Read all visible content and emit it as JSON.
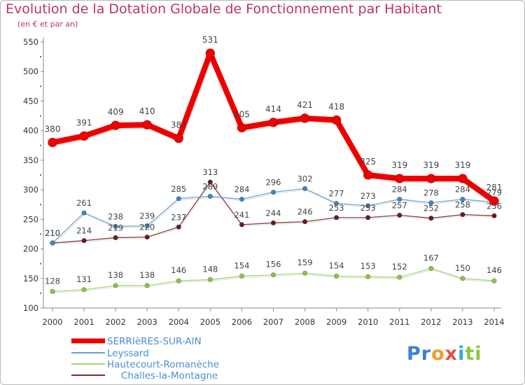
{
  "chart_data": {
    "type": "line",
    "title": "Evolution de la Dotation Globale de Fonctionnement par Habitant",
    "subtitle": "(en € et par an)",
    "xlabel": "",
    "ylabel": "",
    "x": [
      "2000",
      "2001",
      "2002",
      "2003",
      "2004",
      "2005",
      "2006",
      "2007",
      "2008",
      "2009",
      "2010",
      "2011",
      "2012",
      "2013",
      "2014"
    ],
    "ylim": [
      100,
      550
    ],
    "yticks": [
      100,
      150,
      200,
      250,
      300,
      350,
      400,
      450,
      500,
      550
    ],
    "grid": false,
    "legend_position": "bottom-left",
    "series": [
      {
        "name": "SERRIèRES-SUR-AIN",
        "color": "#ee0000",
        "marker": "#ee0000",
        "values": [
          380,
          391,
          409,
          410,
          387,
          531,
          405,
          414,
          421,
          418,
          325,
          319,
          319,
          319,
          281
        ]
      },
      {
        "name": "Leyssard",
        "color": "#6aa0d0",
        "marker": "#3d86c6",
        "values": [
          210,
          261,
          238,
          239,
          285,
          289,
          284,
          296,
          302,
          277,
          273,
          284,
          278,
          284,
          279
        ]
      },
      {
        "name": "Hautecourt-Romanèche",
        "color": "#a4d36c",
        "marker": "#8cc63f",
        "values": [
          128,
          131,
          138,
          138,
          146,
          148,
          154,
          156,
          159,
          154,
          153,
          152,
          167,
          150,
          146
        ]
      },
      {
        "name": "Challes-la-Montagne",
        "color": "#7a2d2d",
        "marker": "#6b1c1c",
        "values": [
          210,
          214,
          219,
          220,
          237,
          313,
          241,
          244,
          246,
          253,
          253,
          257,
          252,
          258,
          256
        ]
      }
    ]
  },
  "brand": {
    "p1": "Pr",
    "p2": "o",
    "p3": "x",
    "p4": "i",
    "p5": "ti"
  }
}
